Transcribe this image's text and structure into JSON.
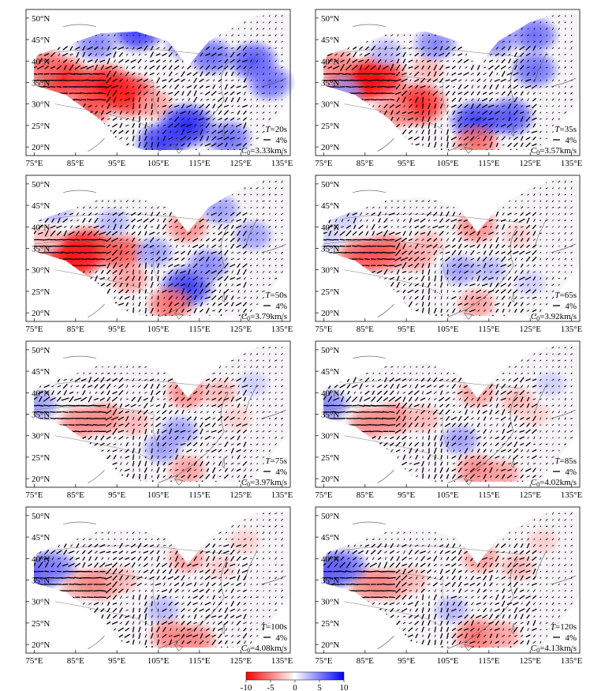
{
  "figure": {
    "x_ticks": [
      "75°E",
      "85°E",
      "95°E",
      "105°E",
      "115°E",
      "125°E",
      "135°E"
    ],
    "y_ticks": [
      "50°N",
      "45°N",
      "40°N",
      "35°N",
      "30°N",
      "25°N",
      "20°N"
    ],
    "panels": [
      {
        "id": "p1",
        "period_value": "20s",
        "scale_label": "4%",
        "c0_value": "3.33km/s",
        "anomalies": [
          [
            82,
            36,
            -9
          ],
          [
            92,
            34,
            -10
          ],
          [
            98,
            32,
            -9
          ],
          [
            77,
            39,
            -6
          ],
          [
            88,
            29,
            -7
          ],
          [
            104,
            30,
            -4
          ],
          [
            112,
            25,
            9
          ],
          [
            106,
            21,
            8
          ],
          [
            122,
            22,
            6
          ],
          [
            128,
            40,
            7
          ],
          [
            132,
            35,
            6
          ],
          [
            118,
            41,
            6
          ],
          [
            100,
            47,
            8
          ],
          [
            90,
            44,
            5
          ],
          [
            112,
            44,
            5
          ]
        ]
      },
      {
        "id": "p2",
        "period_value": "35s",
        "scale_label": "4%",
        "c0_value": "3.57km/s",
        "anomalies": [
          [
            82,
            35,
            -9
          ],
          [
            88,
            36,
            -10
          ],
          [
            98,
            30,
            -9
          ],
          [
            78,
            39,
            -5
          ],
          [
            92,
            28,
            -5
          ],
          [
            100,
            38,
            -3
          ],
          [
            112,
            26,
            8
          ],
          [
            120,
            27,
            7
          ],
          [
            126,
            38,
            6
          ],
          [
            126,
            46,
            6
          ],
          [
            117,
            45,
            5
          ],
          [
            90,
            42,
            3
          ],
          [
            102,
            44,
            5
          ],
          [
            112,
            21,
            -6
          ],
          [
            80,
            33,
            4
          ]
        ]
      },
      {
        "id": "p3",
        "period_value": "50s",
        "scale_label": "4%",
        "c0_value": "3.79km/s",
        "anomalies": [
          [
            84,
            33,
            -10
          ],
          [
            88,
            35,
            -9
          ],
          [
            96,
            34,
            -7
          ],
          [
            78,
            37,
            -3
          ],
          [
            98,
            28,
            -4
          ],
          [
            112,
            26,
            8
          ],
          [
            117,
            31,
            5
          ],
          [
            104,
            34,
            4
          ],
          [
            128,
            38,
            4
          ],
          [
            120,
            44,
            4
          ],
          [
            112,
            40,
            -5
          ],
          [
            108,
            22,
            -6
          ],
          [
            80,
            44,
            3
          ],
          [
            94,
            41,
            3
          ]
        ]
      },
      {
        "id": "p4",
        "period_value": "65s",
        "scale_label": "4%",
        "c0_value": "3.92km/s",
        "anomalies": [
          [
            84,
            33,
            -7
          ],
          [
            90,
            34,
            -7
          ],
          [
            97,
            33,
            -4
          ],
          [
            100,
            36,
            -3
          ],
          [
            76,
            37,
            2
          ],
          [
            112,
            40,
            -5
          ],
          [
            108,
            30,
            4
          ],
          [
            115,
            30,
            3
          ],
          [
            112,
            22,
            -4
          ],
          [
            122,
            38,
            -2
          ],
          [
            125,
            27,
            2
          ],
          [
            80,
            42,
            2
          ]
        ]
      },
      {
        "id": "p5",
        "period_value": "75s",
        "scale_label": "4%",
        "c0_value": "3.97km/s",
        "anomalies": [
          [
            86,
            33,
            -5
          ],
          [
            92,
            34,
            -5
          ],
          [
            99,
            33,
            -3
          ],
          [
            76,
            37,
            4
          ],
          [
            112,
            40,
            -5
          ],
          [
            110,
            31,
            4
          ],
          [
            106,
            27,
            4
          ],
          [
            112,
            22,
            -4
          ],
          [
            120,
            40,
            -3
          ],
          [
            124,
            34,
            -2
          ],
          [
            128,
            42,
            2
          ]
        ]
      },
      {
        "id": "p6",
        "period_value": "85s",
        "scale_label": "4%",
        "c0_value": "4.02km/s",
        "anomalies": [
          [
            86,
            33,
            -5
          ],
          [
            92,
            34,
            -5
          ],
          [
            99,
            34,
            -3
          ],
          [
            76,
            37,
            5
          ],
          [
            112,
            40,
            -4
          ],
          [
            108,
            29,
            4
          ],
          [
            112,
            22,
            -5
          ],
          [
            118,
            21,
            -4
          ],
          [
            122,
            38,
            -3
          ],
          [
            126,
            35,
            -2
          ],
          [
            130,
            42,
            2
          ]
        ]
      },
      {
        "id": "p7",
        "period_value": "100s",
        "scale_label": "4%",
        "c0_value": "4.08km/s",
        "anomalies": [
          [
            86,
            34,
            -4
          ],
          [
            91,
            34,
            -5
          ],
          [
            96,
            35,
            -3
          ],
          [
            76,
            37,
            7
          ],
          [
            80,
            38,
            5
          ],
          [
            112,
            40,
            -4
          ],
          [
            106,
            28,
            3
          ],
          [
            108,
            22,
            -5
          ],
          [
            114,
            21,
            -5
          ],
          [
            120,
            38,
            -2
          ],
          [
            126,
            44,
            -2
          ]
        ]
      },
      {
        "id": "p8",
        "period_value": "120s",
        "scale_label": "4%",
        "c0_value": "4.13km/s",
        "anomalies": [
          [
            86,
            34,
            -5
          ],
          [
            91,
            34,
            -5
          ],
          [
            96,
            35,
            -3
          ],
          [
            76,
            37,
            7
          ],
          [
            80,
            38,
            6
          ],
          [
            113,
            40,
            -4
          ],
          [
            106,
            28,
            3
          ],
          [
            112,
            22,
            -6
          ],
          [
            118,
            22,
            -4
          ],
          [
            122,
            38,
            -3
          ],
          [
            128,
            44,
            -2
          ]
        ]
      }
    ],
    "colorbar": {
      "tick_labels": [
        "-10",
        "-5",
        "0",
        "5",
        "10"
      ],
      "min": -10,
      "max": 10,
      "stops": [
        "#ff0000",
        "#ffffff",
        "#0000ff"
      ]
    }
  }
}
